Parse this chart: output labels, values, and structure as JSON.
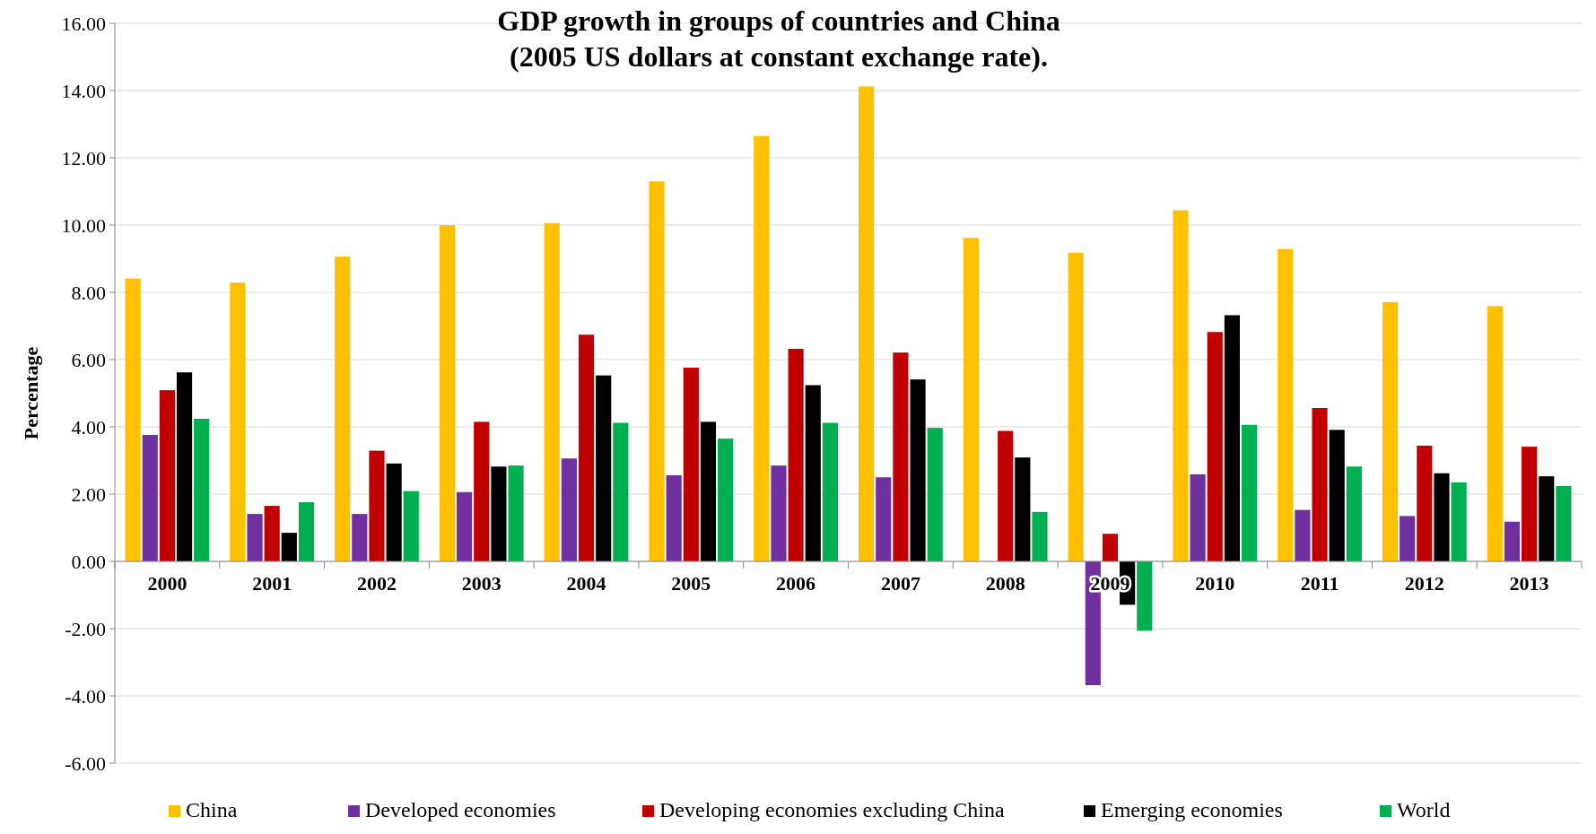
{
  "chart_data": {
    "type": "bar",
    "title": "GDP growth in groups of countries and China\n(2005 US dollars at constant exchange rate).",
    "ylabel": "Percentage",
    "categories": [
      "2000",
      "2001",
      "2002",
      "2003",
      "2004",
      "2005",
      "2006",
      "2007",
      "2008",
      "2009",
      "2010",
      "2011",
      "2012",
      "2013"
    ],
    "series": [
      {
        "name": "China",
        "color": "#ffc000",
        "values": [
          8.41,
          8.29,
          9.06,
          10.0,
          10.06,
          11.3,
          12.65,
          14.12,
          9.62,
          9.18,
          10.44,
          9.29,
          7.71,
          7.59
        ]
      },
      {
        "name": "Developed economies",
        "color": "#7030a0",
        "values": [
          3.76,
          1.41,
          1.41,
          2.06,
          3.06,
          2.56,
          2.85,
          2.5,
          0.0,
          -3.68,
          2.59,
          1.53,
          1.35,
          1.18
        ]
      },
      {
        "name": "Developing economies excluding China",
        "color": "#c00000",
        "values": [
          5.09,
          1.65,
          3.29,
          4.15,
          6.74,
          5.76,
          6.32,
          6.21,
          3.88,
          0.82,
          6.82,
          4.56,
          3.44,
          3.41
        ]
      },
      {
        "name": "Emerging economies",
        "color": "#000000",
        "values": [
          5.62,
          0.85,
          2.91,
          2.82,
          5.53,
          4.15,
          5.24,
          5.41,
          3.09,
          -1.29,
          7.32,
          3.91,
          2.62,
          2.53
        ]
      },
      {
        "name": "World",
        "color": "#00b050",
        "values": [
          4.24,
          1.76,
          2.09,
          2.85,
          4.12,
          3.65,
          4.12,
          3.97,
          1.47,
          -2.06,
          4.06,
          2.82,
          2.35,
          2.24
        ]
      }
    ],
    "ylim": [
      -6,
      16
    ],
    "yticks": [
      {
        "value": -6,
        "label": "-6.00"
      },
      {
        "value": -4,
        "label": "-4.00"
      },
      {
        "value": -2,
        "label": "-2.00"
      },
      {
        "value": 0,
        "label": "0.00"
      },
      {
        "value": 2,
        "label": "2.00"
      },
      {
        "value": 4,
        "label": "4.00"
      },
      {
        "value": 6,
        "label": "6.00"
      },
      {
        "value": 8,
        "label": "8.00"
      },
      {
        "value": 10,
        "label": "10.00"
      },
      {
        "value": 12,
        "label": "12.00"
      },
      {
        "value": 14,
        "label": "14.00"
      },
      {
        "value": 16,
        "label": "16.00"
      }
    ],
    "grid": "y",
    "legend": "bottom"
  }
}
